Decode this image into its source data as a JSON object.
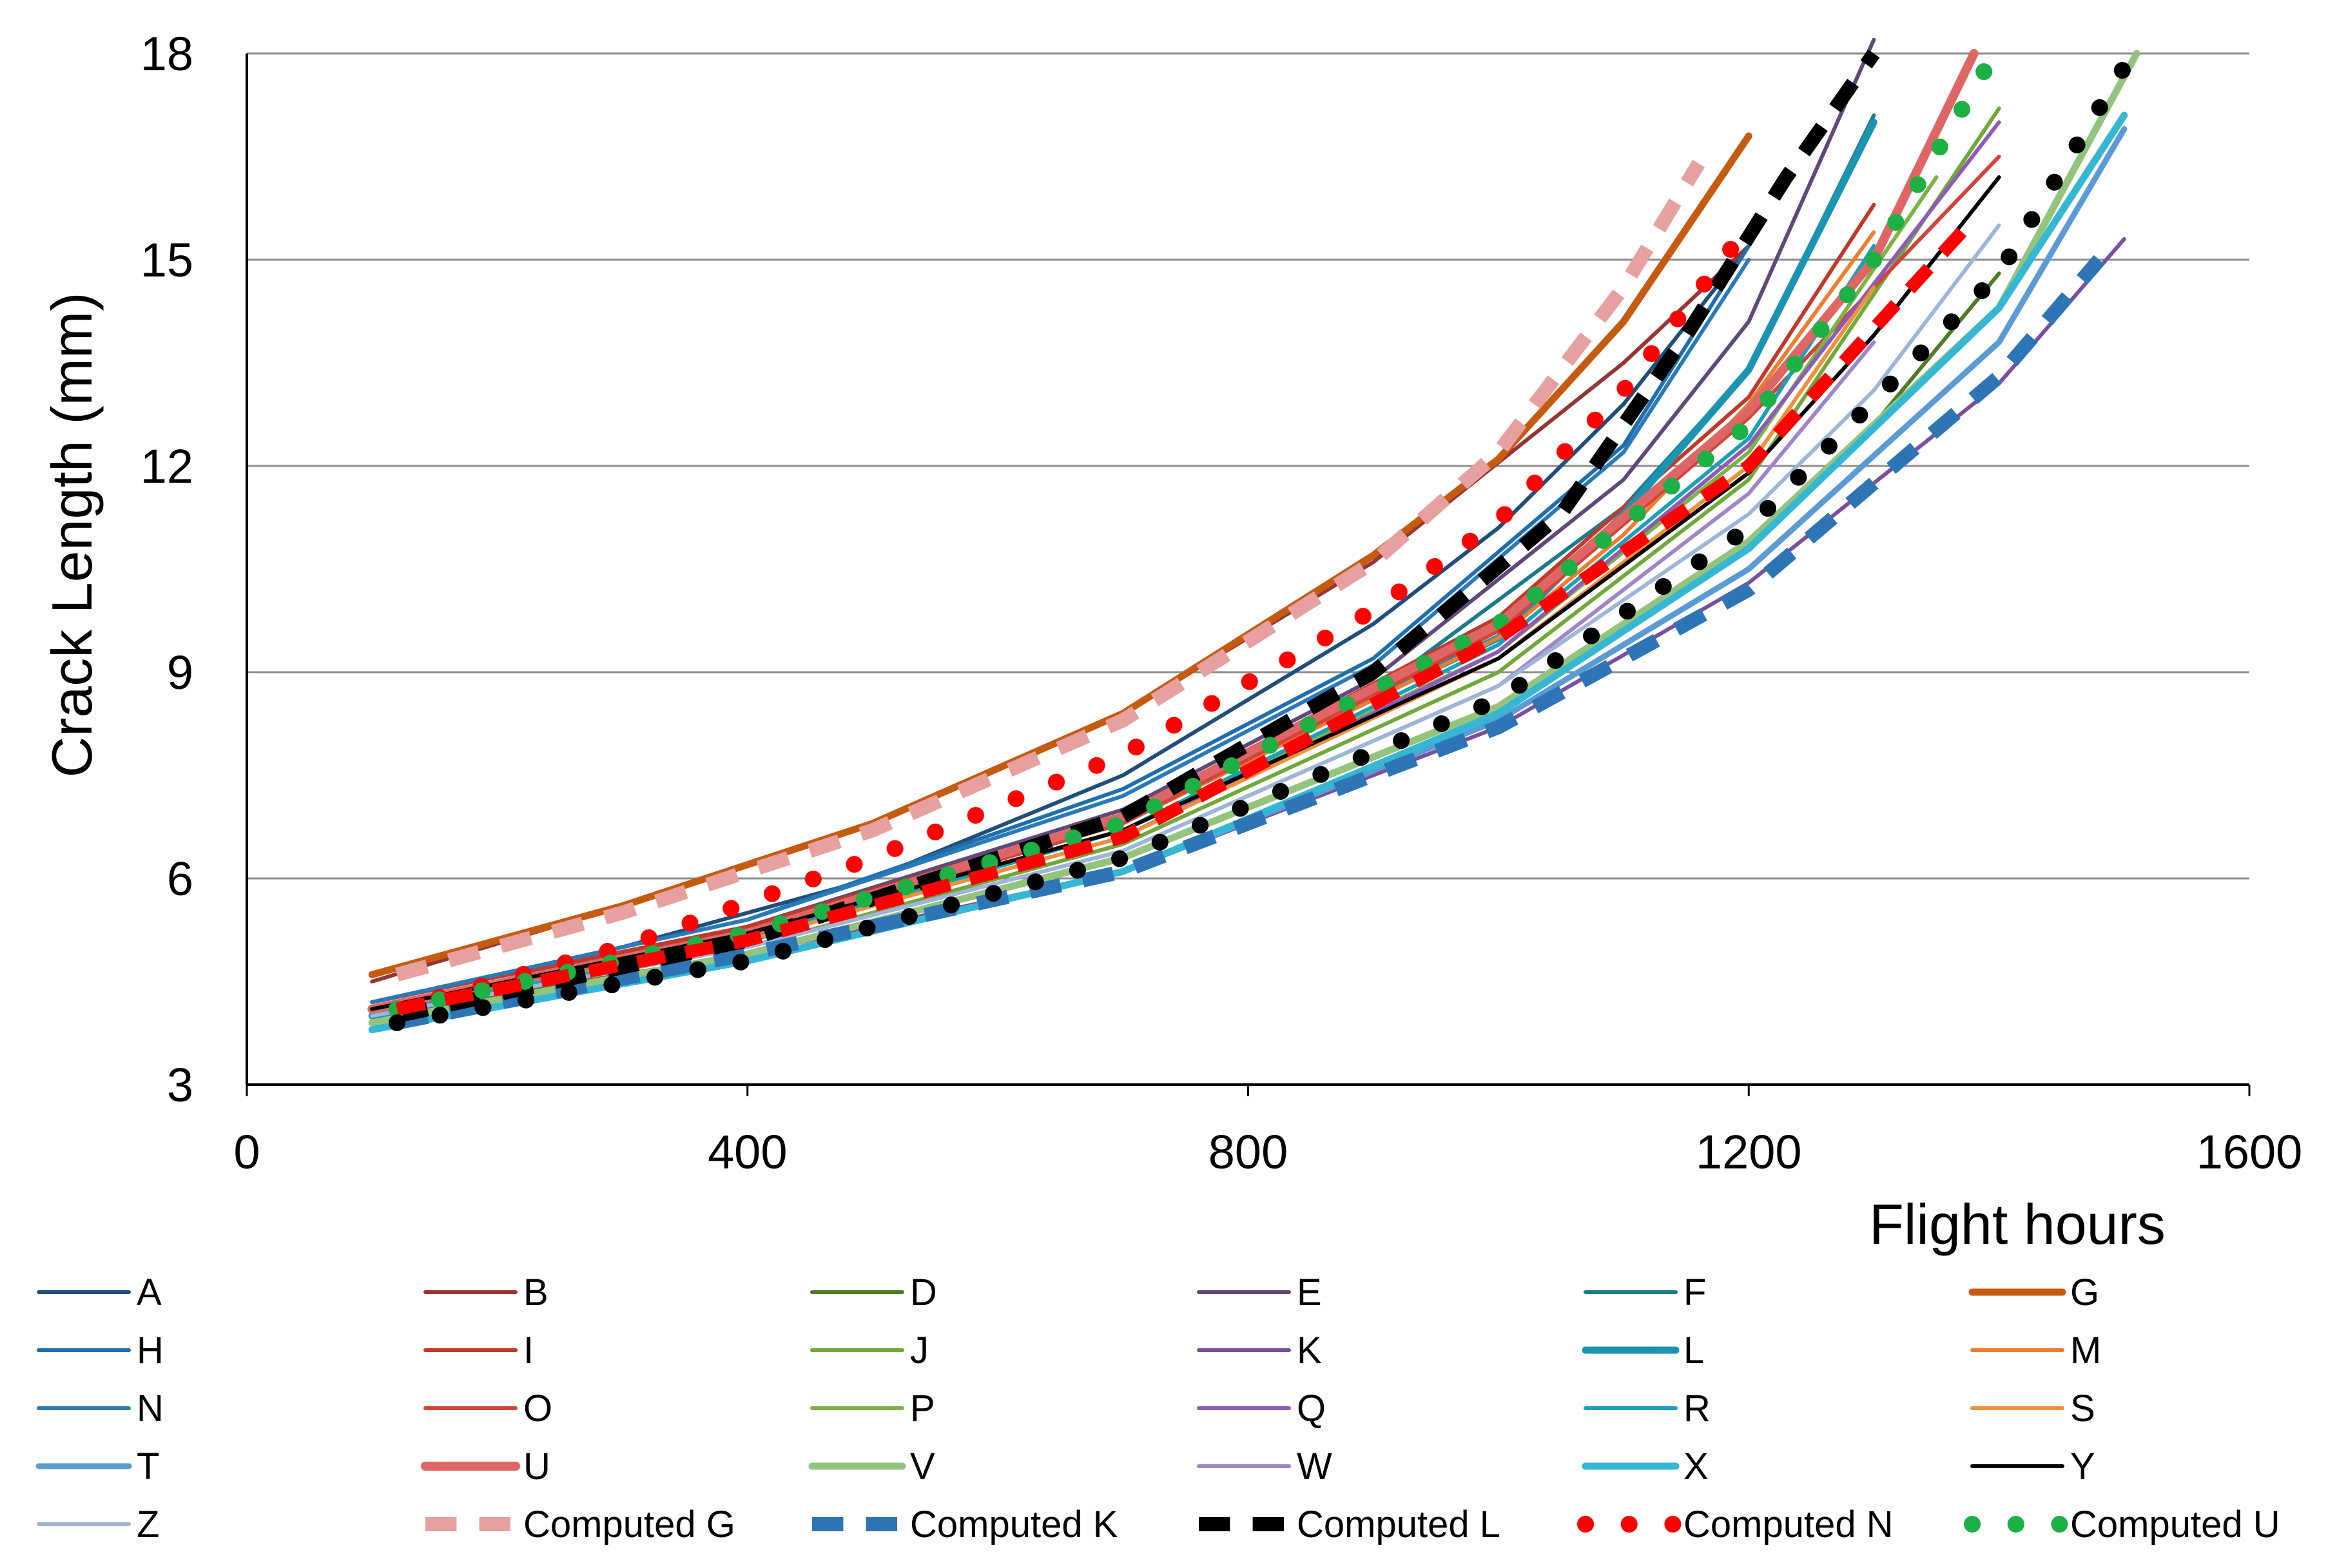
{
  "chart_data": {
    "type": "line",
    "title": "",
    "xlabel": "Flight hours",
    "ylabel": "Crack Length (mm)",
    "xlim": [
      0,
      1600
    ],
    "ylim": [
      3,
      18
    ],
    "x_ticks": [
      0,
      400,
      800,
      1200,
      1600
    ],
    "y_ticks": [
      3,
      6,
      9,
      12,
      15,
      18
    ],
    "grid": true,
    "legend_position": "bottom",
    "series": [
      {
        "name": "A",
        "color": "#1F4E79",
        "style": "solid",
        "width": 6,
        "x": [
          100,
          300,
          500,
          700,
          900,
          1000,
          1100,
          1200
        ],
        "y": [
          4.2,
          5.0,
          6.0,
          7.5,
          9.7,
          11.1,
          12.9,
          15.2
        ]
      },
      {
        "name": "B",
        "color": "#943634",
        "style": "solid",
        "width": 6,
        "x": [
          100,
          300,
          500,
          700,
          900,
          1100,
          1200
        ],
        "y": [
          4.5,
          5.6,
          6.8,
          8.4,
          10.6,
          13.5,
          15.2
        ]
      },
      {
        "name": "D",
        "color": "#4F7A28",
        "style": "solid",
        "width": 6,
        "x": [
          100,
          400,
          700,
          1000,
          1200,
          1300,
          1400
        ],
        "y": [
          4.0,
          4.9,
          6.3,
          8.5,
          10.9,
          12.6,
          14.8
        ]
      },
      {
        "name": "E",
        "color": "#5F497A",
        "style": "solid",
        "width": 6,
        "x": [
          100,
          400,
          700,
          900,
          1100,
          1200,
          1300
        ],
        "y": [
          4.1,
          5.3,
          7.0,
          8.9,
          11.8,
          14.1,
          18.2
        ]
      },
      {
        "name": "F",
        "color": "#1B7B8B",
        "style": "solid",
        "width": 6,
        "x": [
          100,
          400,
          700,
          900,
          1100,
          1200,
          1300
        ],
        "y": [
          4.1,
          5.2,
          6.9,
          8.7,
          11.4,
          13.4,
          17.1
        ]
      },
      {
        "name": "G",
        "color": "#C55A11",
        "style": "solid",
        "width": 11,
        "x": [
          100,
          300,
          500,
          700,
          900,
          1000,
          1100,
          1200
        ],
        "y": [
          4.6,
          5.6,
          6.8,
          8.4,
          10.7,
          12.1,
          14.1,
          16.8
        ]
      },
      {
        "name": "H",
        "color": "#1F6FAE",
        "style": "solid",
        "width": 6,
        "x": [
          100,
          400,
          700,
          900,
          1100,
          1200
        ],
        "y": [
          4.2,
          5.4,
          7.3,
          9.2,
          12.3,
          15.2
        ]
      },
      {
        "name": "I",
        "color": "#C0392B",
        "style": "solid",
        "width": 6,
        "x": [
          100,
          400,
          700,
          1000,
          1200,
          1300
        ],
        "y": [
          4.2,
          5.3,
          6.9,
          9.8,
          13.0,
          15.8
        ]
      },
      {
        "name": "J",
        "color": "#70A83A",
        "style": "solid",
        "width": 6,
        "x": [
          100,
          400,
          700,
          1000,
          1200,
          1400
        ],
        "y": [
          4.1,
          5.0,
          6.5,
          9.0,
          11.8,
          17.2
        ]
      },
      {
        "name": "K",
        "color": "#7A4F9E",
        "style": "solid",
        "width": 6,
        "x": [
          100,
          400,
          700,
          1000,
          1200,
          1400,
          1500
        ],
        "y": [
          3.8,
          4.9,
          6.1,
          8.2,
          10.3,
          13.2,
          15.3
        ]
      },
      {
        "name": "L",
        "color": "#1A94B0",
        "style": "solid",
        "width": 11,
        "x": [
          100,
          400,
          700,
          1000,
          1100,
          1200,
          1300
        ],
        "y": [
          4.0,
          5.1,
          6.9,
          9.5,
          11.3,
          13.4,
          17.0
        ]
      },
      {
        "name": "M",
        "color": "#ED7D31",
        "style": "solid",
        "width": 6,
        "x": [
          100,
          400,
          700,
          1000,
          1100,
          1200,
          1300
        ],
        "y": [
          4.1,
          5.2,
          6.8,
          9.5,
          11.0,
          12.9,
          15.4
        ]
      },
      {
        "name": "N",
        "color": "#2A7AB8",
        "style": "solid",
        "width": 6,
        "x": [
          100,
          400,
          700,
          900,
          1100,
          1200
        ],
        "y": [
          4.2,
          5.4,
          7.2,
          9.1,
          12.2,
          15.0
        ]
      },
      {
        "name": "O",
        "color": "#D0443C",
        "style": "solid",
        "width": 6,
        "x": [
          100,
          400,
          700,
          1000,
          1200,
          1400
        ],
        "y": [
          4.1,
          5.2,
          6.8,
          9.6,
          12.7,
          16.5
        ]
      },
      {
        "name": "P",
        "color": "#7CB342",
        "style": "solid",
        "width": 6,
        "x": [
          100,
          400,
          700,
          1000,
          1200,
          1350
        ],
        "y": [
          4.1,
          5.1,
          6.7,
          9.3,
          12.2,
          16.2
        ]
      },
      {
        "name": "Q",
        "color": "#8E5BB5",
        "style": "solid",
        "width": 6,
        "x": [
          100,
          400,
          700,
          1000,
          1200,
          1400
        ],
        "y": [
          4.0,
          5.1,
          6.6,
          9.3,
          12.3,
          17.0
        ]
      },
      {
        "name": "R",
        "color": "#1AA0B8",
        "style": "solid",
        "width": 6,
        "x": [
          100,
          400,
          700,
          1000,
          1200,
          1300
        ],
        "y": [
          4.0,
          5.1,
          6.7,
          9.4,
          12.4,
          15.2
        ]
      },
      {
        "name": "S",
        "color": "#F0903A",
        "style": "solid",
        "width": 6,
        "x": [
          100,
          400,
          700,
          1000,
          1200,
          1300
        ],
        "y": [
          4.1,
          5.1,
          6.6,
          9.2,
          12.0,
          14.6
        ]
      },
      {
        "name": "T",
        "color": "#5B9BD5",
        "style": "solid",
        "width": 9,
        "x": [
          100,
          400,
          700,
          1000,
          1200,
          1400,
          1500
        ],
        "y": [
          3.8,
          4.8,
          6.1,
          8.3,
          10.5,
          13.8,
          16.9
        ]
      },
      {
        "name": "U",
        "color": "#E06666",
        "style": "solid",
        "width": 14,
        "x": [
          100,
          400,
          700,
          1000,
          1200,
          1300,
          1380
        ],
        "y": [
          4.1,
          5.2,
          6.9,
          9.7,
          12.8,
          15.0,
          18.0
        ]
      },
      {
        "name": "V",
        "color": "#93C47D",
        "style": "solid",
        "width": 11,
        "x": [
          100,
          400,
          700,
          1000,
          1200,
          1400,
          1510
        ],
        "y": [
          3.9,
          4.9,
          6.3,
          8.5,
          10.9,
          14.3,
          18.0
        ]
      },
      {
        "name": "W",
        "color": "#9E86C8",
        "style": "solid",
        "width": 6,
        "x": [
          100,
          400,
          700,
          1000,
          1200,
          1300
        ],
        "y": [
          4.0,
          5.0,
          6.4,
          8.8,
          11.6,
          13.8
        ]
      },
      {
        "name": "X",
        "color": "#35B7D4",
        "style": "solid",
        "width": 11,
        "x": [
          100,
          400,
          700,
          1000,
          1200,
          1400,
          1500
        ],
        "y": [
          3.8,
          4.8,
          6.1,
          8.4,
          10.8,
          14.3,
          17.1
        ]
      },
      {
        "name": "Y",
        "color": "#000000",
        "style": "solid",
        "width": 6,
        "x": [
          100,
          400,
          700,
          1000,
          1200,
          1300,
          1400
        ],
        "y": [
          4.1,
          5.2,
          6.7,
          9.2,
          11.9,
          13.9,
          16.2
        ]
      },
      {
        "name": "Z",
        "color": "#9DB5D8",
        "style": "solid",
        "width": 6,
        "x": [
          100,
          400,
          700,
          1000,
          1200,
          1300,
          1400
        ],
        "y": [
          4.0,
          5.0,
          6.4,
          8.8,
          11.3,
          13.1,
          15.5
        ]
      },
      {
        "name": "Computed G",
        "color": "#E6A0A0",
        "style": "dashed",
        "width": 22,
        "x": [
          120,
          300,
          500,
          700,
          900,
          1000,
          1100,
          1160
        ],
        "y": [
          4.6,
          5.5,
          6.7,
          8.3,
          10.6,
          12.2,
          14.6,
          16.4
        ]
      },
      {
        "name": "Computed K",
        "color": "#2E75B6",
        "style": "dashed",
        "width": 22,
        "x": [
          120,
          400,
          700,
          1000,
          1200,
          1400,
          1480
        ],
        "y": [
          3.9,
          4.9,
          6.1,
          8.2,
          10.2,
          13.3,
          15.0
        ]
      },
      {
        "name": "Computed L",
        "color": "#000000",
        "style": "dashed",
        "width": 22,
        "x": [
          120,
          400,
          700,
          900,
          1050,
          1150,
          1230,
          1300
        ],
        "y": [
          4.0,
          5.1,
          6.9,
          9.0,
          11.3,
          13.9,
          16.2,
          18.0
        ]
      },
      {
        "name": "Computed N",
        "color": "#FF0000",
        "style": "dotted",
        "width": 26,
        "x": [
          120,
          300,
          500,
          700,
          900,
          1000,
          1100,
          1200
        ],
        "y": [
          4.1,
          5.0,
          6.3,
          7.8,
          9.9,
          11.2,
          13.1,
          15.5
        ]
      },
      {
        "name": "Computed U",
        "color": "#1DB045",
        "style": "dotted",
        "width": 26,
        "x": [
          120,
          400,
          700,
          1000,
          1200,
          1300,
          1390
        ],
        "y": [
          4.1,
          5.2,
          6.8,
          9.7,
          12.6,
          15.0,
          17.8
        ]
      }
    ],
    "series_extra": [
      {
        "name": "Computed N",
        "style": "dashed",
        "color": "#FF0000",
        "width": 20,
        "x": [
          120,
          400,
          700,
          1000,
          1200,
          1380
        ],
        "y": [
          4.1,
          5.1,
          6.6,
          9.5,
          12.0,
          15.6
        ]
      },
      {
        "name": "Computed L",
        "style": "dotted",
        "color": "#000000",
        "width": 26,
        "x": [
          120,
          400,
          700,
          1000,
          1200,
          1400,
          1510
        ],
        "y": [
          3.9,
          4.8,
          6.3,
          8.6,
          11.1,
          14.8,
          18.1
        ]
      }
    ]
  }
}
